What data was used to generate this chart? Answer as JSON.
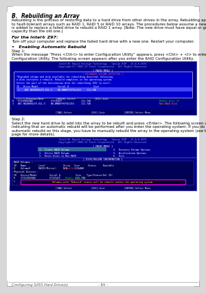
{
  "page_bg": "#d8d8d8",
  "content_bg": "#ffffff",
  "title": "B.  Rebuilding an Array",
  "body_text1": "Rebuilding is the process of restoring data to a hard drive from other drives in the array. Rebuilding applies only\nto fault-tolerant arrays such as RAID 1, RAID 5 or RAID 10 arrays. The procedures below assume a new drive\nis added to replace a failed drive to rebuild a RAID 1 array. (Note: The new drive must have equal or greater\ncapacity than the old one.)",
  "for_intel_label": "For the Intel® Z97:",
  "for_intel_body": "Turn off your computer and replace the failed hard drive with a new one. Restart your computer.",
  "bullet_label": "•   Enabling Automatic Rebuild",
  "step1_label": "Step 1:",
  "step1_body": "When the message “Press <Ctrl-I> to enter Configuration Utility” appears, press <Ctrl> + <I> to enter the RAID\nConfiguration Utility. The following screen appears after you enter the RAID Configuration Utility.",
  "step2_label": "Step 2:",
  "step2_body": "Select the new hard drive to add into the array to be rebuilt and press <Enter>. The following screen appears,\nindicating that an automatic rebuild will be performed after you enter the operating system. If you do not enable\nautomatic rebuild on this stage, you have to manually rebuild the array in the operating system (see the next\npage for more details).",
  "footer_left": "Configuring SATA Hard Drive(s)",
  "footer_center": "- 84 -",
  "screen1_header1": "Intel(R) Rapid Storage Technology - Option ROM - 13.8.0.2075",
  "screen1_header2": "Copyright(C) 2003-13 Intel Corporation.  All Rights Reserved.",
  "screen1_main_menu": "[ MAIN MENU ]",
  "screen1_degraded": "[ DEGRADED VOLUME DETECTED ]",
  "screen1_deg_t1": "*Degraded volume and disk available for rebuilding detected. Selecting",
  "screen1_deg_t2": "a disk initiates a rebuild. Rebuild completes in the operating system.",
  "screen1_deg_t3": "Select the port of the destination disk for rebuilding (ESC to exit):",
  "screen1_col_hdr": "ID   Drive Model              Serial #                  Size",
  "screen1_sel_row": "1    WDC WD4000GLFS-01L-5    WD-WMAEFF07561153    111.7GB",
  "screen1_nav": "[?/↑↓]-Previous/Next         [ENTER]-Select              [ESC]-Exit",
  "screen1_row0_main": "0   ST3120026AS             ST3154CP              111.7GB",
  "screen1_row0_status": "Member Disk (0)",
  "screen1_row0_scolor": "#00cc00",
  "screen1_row1_main": "1   WDC WD4000GLFS-01L-5    WD-WMAEFF07561153     111.7GB",
  "screen1_row1_status": "Non-RAID Disk",
  "screen1_row1_scolor": "#ff8800",
  "screen1_bot": "[TAB]-Select              [ESC]-Exit              [ENTER]-Select Menu",
  "screen2_header1": "Intel(R) Rapid Storage Technology - Option ROM - 13.8.0.2075",
  "screen2_header2": "Copyright(C) 2003-13 Intel Corporation.  All Rights Reserved.",
  "screen2_main_menu": "[ MAIN MENU ]",
  "screen2_menu_hl": "1.  Create RAID Volume",
  "screen2_menu2": "2.  Delete RAID Volume",
  "screen2_menu3": "3.  Reset Disks to Non-RAID",
  "screen2_menu4": "4.  Recovery Volume Options",
  "screen2_menu5": "5.  Acceleration Options",
  "screen2_menu6": "6.  Exit",
  "screen2_dv_label": "[ DISK/VOLUME INFORMATION ]",
  "screen2_rv_label": "RAID Volumes :",
  "screen2_rv_hdr": "ID   Name         Level             Strip   Size      Status     Bootable",
  "screen2_rv_row_pre": "0    Volume0      RAID1(Mirror)     N/A     111.7GB  ",
  "screen2_rv_row_status": "Rebuild",
  "screen2_rv_row_post": "     Yes",
  "screen2_pd_label": "Physical Devices :",
  "screen2_pd_hdr": "ID   Device/Model         Serial #           Size    Type/Status(Vol ID)",
  "screen2_pd_row0_pre": "0    ST3120026AS          ST3154CP           111.7GB  ",
  "screen2_pd_row0_status": "Member Disk (0)",
  "screen2_pd_row0_scolor": "#00cc00",
  "screen2_pd_row1_pre": "1    WDC WD4000GLFS-01L-5 WD-WMAEFF07561153  111.7GB  ",
  "screen2_pd_row1_status": "Member Disk (0)",
  "screen2_pd_row1_scolor": "#ff8800",
  "screen2_notice": "Volumes with \"Rebuild\" status will be rebuilt within the operating system.",
  "screen2_bot": "[TAB]-Select              [ESC]-Exit              [ENTER]-Select Menu"
}
